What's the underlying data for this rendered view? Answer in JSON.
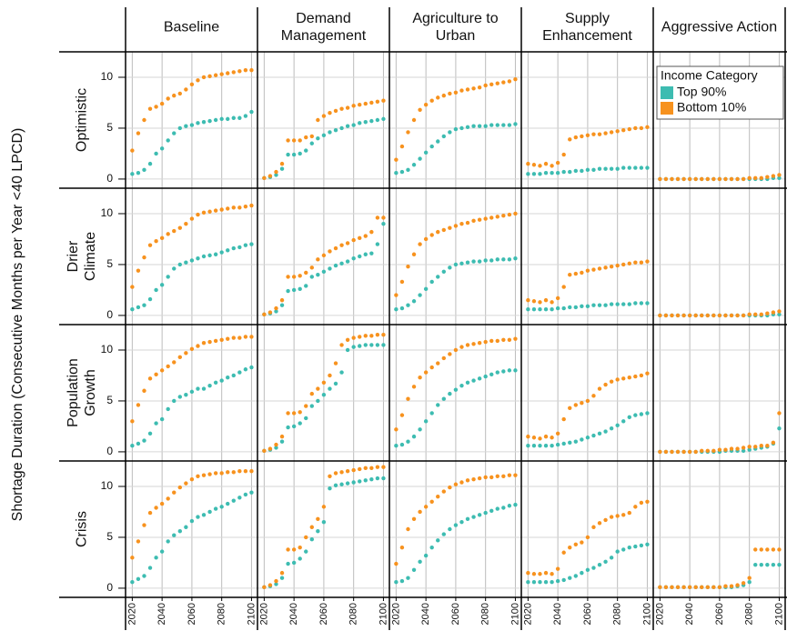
{
  "chart_data": {
    "type": "scatter",
    "ylabel": "Shortage Duration (Consecutive Months per Year <40 LPCD)",
    "col_labels": [
      "Baseline",
      "Demand Management",
      "Agriculture to Urban",
      "Supply Enhancement",
      "Aggressive Action"
    ],
    "row_labels": [
      "Optimistic",
      "Drier Climate",
      "Population Growth",
      "Crisis"
    ],
    "legend_title": "Income Category",
    "series": [
      {
        "name": "Top 90%",
        "color": "#3dbcb1"
      },
      {
        "name": "Bottom 10%",
        "color": "#f7921e"
      }
    ],
    "x": [
      2020,
      2024,
      2028,
      2032,
      2036,
      2040,
      2044,
      2048,
      2052,
      2056,
      2060,
      2064,
      2068,
      2072,
      2076,
      2080,
      2084,
      2088,
      2092,
      2096,
      2100
    ],
    "xlim": [
      2015.5,
      2104
    ],
    "xticks": [
      2020,
      2040,
      2060,
      2080,
      2100
    ],
    "ylim": [
      -0.9,
      12.5
    ],
    "yticks": [
      0,
      5,
      10
    ],
    "grid": true,
    "panels": [
      [
        [
          0.5,
          0.6,
          0.9,
          1.5,
          2.5,
          3.0,
          3.8,
          4.5,
          5.0,
          5.2,
          5.3,
          5.5,
          5.6,
          5.7,
          5.8,
          5.9,
          5.9,
          6.0,
          6.0,
          6.2,
          6.6
        ],
        [
          2.8,
          4.5,
          5.8,
          6.9,
          7.1,
          7.4,
          7.9,
          8.2,
          8.4,
          8.8,
          9.3,
          9.7,
          10.0,
          10.1,
          10.2,
          10.3,
          10.4,
          10.5,
          10.6,
          10.7,
          10.7
        ]
      ],
      [
        [
          0.1,
          0.2,
          0.4,
          1.0,
          2.4,
          2.4,
          2.5,
          2.8,
          3.5,
          4.0,
          4.3,
          4.6,
          4.8,
          5.0,
          5.2,
          5.3,
          5.5,
          5.6,
          5.7,
          5.8,
          5.9
        ],
        [
          0.1,
          0.3,
          0.7,
          1.5,
          3.8,
          3.8,
          3.8,
          4.1,
          4.2,
          5.8,
          6.2,
          6.5,
          6.7,
          6.9,
          7.0,
          7.2,
          7.3,
          7.4,
          7.5,
          7.6,
          7.7
        ]
      ],
      [
        [
          0.6,
          0.7,
          0.9,
          1.4,
          2.0,
          2.6,
          3.2,
          3.7,
          4.2,
          4.6,
          4.9,
          5.0,
          5.1,
          5.2,
          5.2,
          5.2,
          5.3,
          5.3,
          5.3,
          5.3,
          5.4
        ],
        [
          1.9,
          3.2,
          4.6,
          5.8,
          6.8,
          7.3,
          7.7,
          8.0,
          8.2,
          8.4,
          8.5,
          8.7,
          8.8,
          8.9,
          9.0,
          9.2,
          9.3,
          9.4,
          9.5,
          9.6,
          9.8
        ]
      ],
      [
        [
          0.5,
          0.5,
          0.5,
          0.6,
          0.6,
          0.6,
          0.7,
          0.7,
          0.8,
          0.8,
          0.9,
          0.9,
          1.0,
          1.0,
          1.0,
          1.0,
          1.1,
          1.1,
          1.1,
          1.1,
          1.1
        ],
        [
          1.5,
          1.4,
          1.3,
          1.5,
          1.3,
          1.6,
          2.4,
          3.9,
          4.1,
          4.2,
          4.3,
          4.4,
          4.4,
          4.5,
          4.6,
          4.7,
          4.8,
          4.9,
          5.0,
          5.0,
          5.1
        ]
      ],
      [
        [
          0.0,
          0.0,
          0.0,
          0.0,
          0.0,
          0.0,
          0.0,
          0.0,
          0.0,
          0.0,
          0.0,
          0.0,
          0.0,
          0.0,
          0.0,
          0.0,
          0.0,
          0.0,
          0.0,
          0.1,
          0.1
        ],
        [
          0.0,
          0.0,
          0.0,
          0.0,
          0.0,
          0.0,
          0.0,
          0.0,
          0.0,
          0.0,
          0.0,
          0.0,
          0.0,
          0.0,
          0.0,
          0.1,
          0.1,
          0.1,
          0.2,
          0.3,
          0.4
        ]
      ],
      [
        [
          0.6,
          0.8,
          1.0,
          1.6,
          2.5,
          3.0,
          3.8,
          4.6,
          5.0,
          5.2,
          5.4,
          5.6,
          5.8,
          5.9,
          6.0,
          6.2,
          6.4,
          6.6,
          6.7,
          6.9,
          7.0
        ],
        [
          2.8,
          4.4,
          5.7,
          6.9,
          7.3,
          7.6,
          8.0,
          8.3,
          8.6,
          9.0,
          9.5,
          9.9,
          10.1,
          10.2,
          10.3,
          10.4,
          10.5,
          10.6,
          10.6,
          10.7,
          10.8
        ]
      ],
      [
        [
          0.1,
          0.2,
          0.4,
          1.0,
          2.4,
          2.5,
          2.6,
          2.9,
          3.8,
          4.0,
          4.3,
          4.6,
          4.9,
          5.1,
          5.3,
          5.6,
          5.8,
          6.0,
          6.1,
          7.0,
          9.0
        ],
        [
          0.1,
          0.3,
          0.7,
          1.5,
          3.8,
          3.8,
          3.9,
          4.2,
          4.7,
          5.5,
          5.9,
          6.3,
          6.6,
          6.9,
          7.1,
          7.4,
          7.6,
          7.8,
          8.2,
          9.6,
          9.6
        ]
      ],
      [
        [
          0.6,
          0.7,
          1.0,
          1.4,
          2.0,
          2.6,
          3.3,
          3.8,
          4.3,
          4.7,
          5.0,
          5.1,
          5.2,
          5.3,
          5.3,
          5.4,
          5.4,
          5.5,
          5.5,
          5.5,
          5.6
        ],
        [
          2.0,
          3.3,
          4.8,
          6.0,
          7.0,
          7.5,
          7.9,
          8.2,
          8.4,
          8.6,
          8.8,
          9.0,
          9.1,
          9.3,
          9.4,
          9.5,
          9.6,
          9.7,
          9.8,
          9.9,
          10.0
        ]
      ],
      [
        [
          0.6,
          0.6,
          0.6,
          0.6,
          0.6,
          0.7,
          0.7,
          0.8,
          0.8,
          0.9,
          0.9,
          1.0,
          1.0,
          1.0,
          1.1,
          1.1,
          1.1,
          1.1,
          1.2,
          1.2,
          1.2
        ],
        [
          1.5,
          1.4,
          1.3,
          1.5,
          1.3,
          1.7,
          2.8,
          4.0,
          4.1,
          4.2,
          4.4,
          4.5,
          4.6,
          4.7,
          4.8,
          4.9,
          5.0,
          5.1,
          5.2,
          5.2,
          5.3
        ]
      ],
      [
        [
          0.0,
          0.0,
          0.0,
          0.0,
          0.0,
          0.0,
          0.0,
          0.0,
          0.0,
          0.0,
          0.0,
          0.0,
          0.0,
          0.0,
          0.0,
          0.0,
          0.0,
          0.0,
          0.0,
          0.1,
          0.1
        ],
        [
          0.0,
          0.0,
          0.0,
          0.0,
          0.0,
          0.0,
          0.0,
          0.0,
          0.0,
          0.0,
          0.0,
          0.0,
          0.0,
          0.0,
          0.0,
          0.1,
          0.1,
          0.1,
          0.2,
          0.3,
          0.4
        ]
      ],
      [
        [
          0.6,
          0.8,
          1.1,
          1.8,
          2.8,
          3.2,
          4.2,
          5.0,
          5.4,
          5.6,
          5.9,
          6.2,
          6.2,
          6.5,
          6.8,
          7.0,
          7.3,
          7.5,
          7.8,
          8.1,
          8.3
        ],
        [
          3.0,
          4.6,
          6.0,
          7.2,
          7.6,
          8.0,
          8.4,
          8.8,
          9.3,
          9.7,
          10.1,
          10.4,
          10.7,
          10.8,
          10.9,
          11.0,
          11.1,
          11.2,
          11.2,
          11.3,
          11.3
        ]
      ],
      [
        [
          0.1,
          0.2,
          0.4,
          1.0,
          2.4,
          2.5,
          2.8,
          3.3,
          4.5,
          5.0,
          5.6,
          6.2,
          6.7,
          7.8,
          10.0,
          10.3,
          10.4,
          10.5,
          10.5,
          10.5,
          10.5
        ],
        [
          0.1,
          0.3,
          0.7,
          1.5,
          3.8,
          3.8,
          3.9,
          4.5,
          5.7,
          6.2,
          6.8,
          7.5,
          8.7,
          10.5,
          11.0,
          11.2,
          11.3,
          11.4,
          11.4,
          11.5,
          11.5
        ]
      ],
      [
        [
          0.6,
          0.7,
          1.0,
          1.5,
          2.2,
          3.0,
          3.8,
          4.6,
          5.2,
          5.7,
          6.1,
          6.5,
          6.8,
          7.0,
          7.2,
          7.4,
          7.6,
          7.8,
          7.9,
          8.0,
          8.0
        ],
        [
          2.2,
          3.6,
          5.2,
          6.4,
          7.3,
          7.8,
          8.3,
          8.7,
          9.2,
          9.6,
          10.0,
          10.3,
          10.5,
          10.6,
          10.7,
          10.8,
          10.9,
          10.9,
          11.0,
          11.0,
          11.1
        ]
      ],
      [
        [
          0.6,
          0.6,
          0.6,
          0.6,
          0.6,
          0.7,
          0.8,
          0.9,
          1.0,
          1.2,
          1.4,
          1.6,
          1.8,
          2.0,
          2.3,
          2.6,
          3.0,
          3.4,
          3.6,
          3.7,
          3.8
        ],
        [
          1.5,
          1.4,
          1.3,
          1.5,
          1.4,
          1.8,
          3.2,
          4.3,
          4.6,
          4.8,
          5.0,
          5.5,
          6.2,
          6.6,
          6.9,
          7.1,
          7.2,
          7.3,
          7.4,
          7.5,
          7.7
        ]
      ],
      [
        [
          0.0,
          0.0,
          0.0,
          0.0,
          0.0,
          0.0,
          0.0,
          0.0,
          0.0,
          0.0,
          0.0,
          0.1,
          0.1,
          0.1,
          0.1,
          0.2,
          0.3,
          0.4,
          0.5,
          0.8,
          2.3
        ],
        [
          0.0,
          0.0,
          0.0,
          0.0,
          0.0,
          0.0,
          0.0,
          0.1,
          0.1,
          0.1,
          0.2,
          0.2,
          0.3,
          0.3,
          0.4,
          0.5,
          0.5,
          0.6,
          0.6,
          0.9,
          3.8
        ]
      ],
      [
        [
          0.6,
          0.9,
          1.2,
          2.0,
          3.0,
          3.6,
          4.6,
          5.2,
          5.6,
          6.0,
          6.6,
          7.0,
          7.2,
          7.5,
          7.8,
          8.0,
          8.3,
          8.6,
          8.9,
          9.2,
          9.4
        ],
        [
          3.0,
          4.6,
          6.2,
          7.4,
          7.9,
          8.3,
          8.8,
          9.4,
          9.9,
          10.3,
          10.7,
          11.0,
          11.1,
          11.2,
          11.3,
          11.3,
          11.4,
          11.4,
          11.5,
          11.5,
          11.5
        ]
      ],
      [
        [
          0.1,
          0.2,
          0.4,
          1.0,
          2.4,
          2.5,
          2.9,
          3.6,
          4.8,
          5.6,
          6.5,
          9.8,
          10.1,
          10.2,
          10.3,
          10.4,
          10.5,
          10.6,
          10.7,
          10.8,
          10.8
        ],
        [
          0.1,
          0.3,
          0.7,
          1.5,
          3.8,
          3.8,
          4.0,
          5.0,
          6.0,
          6.8,
          8.0,
          11.0,
          11.3,
          11.4,
          11.5,
          11.6,
          11.7,
          11.8,
          11.8,
          11.9,
          11.9
        ]
      ],
      [
        [
          0.6,
          0.7,
          1.0,
          1.8,
          2.6,
          3.2,
          4.0,
          4.7,
          5.3,
          5.8,
          6.2,
          6.5,
          6.8,
          7.0,
          7.2,
          7.4,
          7.6,
          7.8,
          7.9,
          8.1,
          8.2
        ],
        [
          2.4,
          4.0,
          5.8,
          6.8,
          7.5,
          8.0,
          8.5,
          9.0,
          9.5,
          9.9,
          10.2,
          10.4,
          10.6,
          10.7,
          10.8,
          10.9,
          10.9,
          11.0,
          11.0,
          11.1,
          11.1
        ]
      ],
      [
        [
          0.6,
          0.6,
          0.6,
          0.6,
          0.6,
          0.7,
          0.8,
          1.0,
          1.2,
          1.5,
          1.8,
          2.0,
          2.3,
          2.6,
          3.0,
          3.6,
          3.8,
          4.0,
          4.1,
          4.2,
          4.3
        ],
        [
          1.5,
          1.4,
          1.4,
          1.5,
          1.4,
          1.9,
          3.5,
          4.0,
          4.3,
          4.5,
          5.0,
          6.0,
          6.4,
          6.7,
          7.0,
          7.1,
          7.2,
          7.4,
          8.0,
          8.4,
          8.5
        ]
      ],
      [
        [
          0.1,
          0.1,
          0.1,
          0.1,
          0.1,
          0.1,
          0.1,
          0.1,
          0.1,
          0.1,
          0.1,
          0.1,
          0.1,
          0.2,
          0.3,
          0.6,
          2.3,
          2.3,
          2.3,
          2.3,
          2.3
        ],
        [
          0.1,
          0.1,
          0.1,
          0.1,
          0.1,
          0.1,
          0.1,
          0.1,
          0.1,
          0.1,
          0.1,
          0.2,
          0.2,
          0.3,
          0.5,
          1.0,
          3.8,
          3.8,
          3.8,
          3.8,
          3.8
        ]
      ]
    ]
  }
}
